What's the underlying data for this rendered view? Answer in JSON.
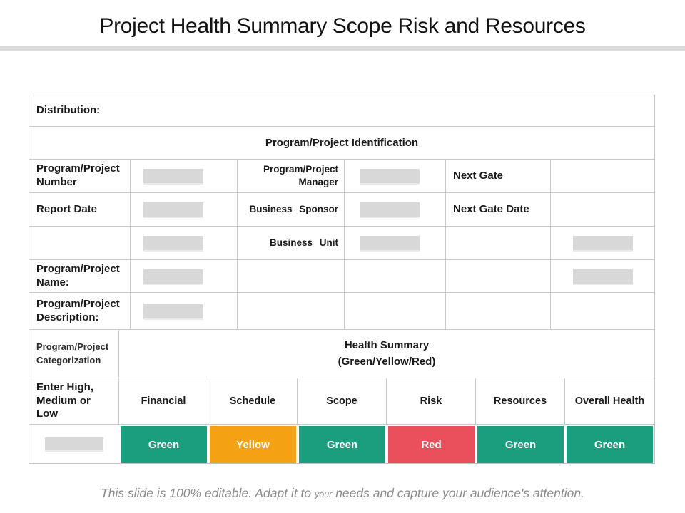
{
  "title": "Project Health Summary Scope Risk and Resources",
  "table": {
    "distribution_label": "Distribution:",
    "identification_header": "Program/Project Identification",
    "labels": {
      "number": "Program/Project Number",
      "manager": "Program/Project Manager",
      "next_gate": "Next Gate",
      "report_date": "Report Date",
      "business_sponsor": "Business Sponsor",
      "next_gate_date": "Next Gate Date",
      "business_unit": "Business Unit",
      "name": "Program/Project Name:",
      "description": "Program/Project Description:"
    }
  },
  "health": {
    "categorization_label": "Program/Project Categorization",
    "summary_title": "Health Summary",
    "summary_subtitle": "(Green/Yellow/Red)",
    "enter_label": "Enter High, Medium or Low",
    "columns": [
      "Financial",
      "Schedule",
      "Scope",
      "Risk",
      "Resources",
      "Overall Health"
    ],
    "statuses": [
      {
        "label": "Green",
        "color": "#1A9E7D"
      },
      {
        "label": "Yellow",
        "color": "#F4A213"
      },
      {
        "label": "Green",
        "color": "#1A9E7D"
      },
      {
        "label": "Red",
        "color": "#E9505B"
      },
      {
        "label": "Green",
        "color": "#1A9E7D"
      },
      {
        "label": "Green",
        "color": "#1A9E7D"
      }
    ]
  },
  "colors": {
    "green": "#1A9E7D",
    "yellow": "#F4A213",
    "red": "#E9505B",
    "border": "#C9C9C9",
    "placeholder": "#D8D8D8"
  },
  "footer": {
    "text_before": "This slide is 100% editable. Adapt it to ",
    "text_small": "your",
    "text_after": " needs and capture your audience's attention."
  }
}
